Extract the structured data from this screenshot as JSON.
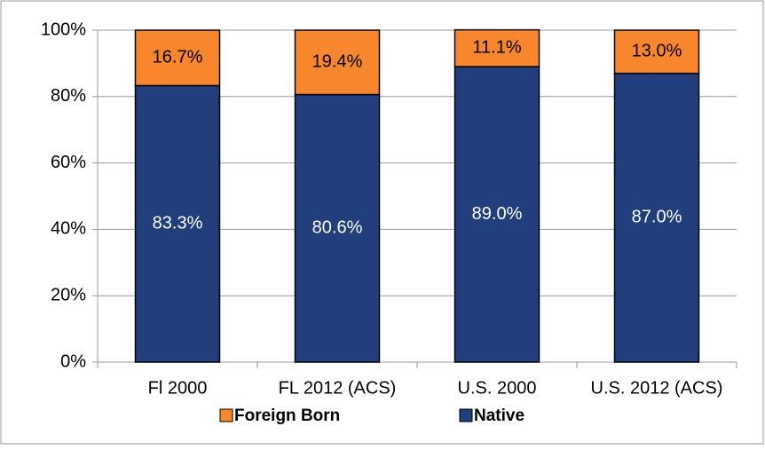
{
  "chart_data": {
    "type": "stacked-bar",
    "categories": [
      "Fl 2000",
      "FL 2012 (ACS)",
      "U.S. 2000",
      "U.S. 2012 (ACS)"
    ],
    "series": [
      {
        "name": "Native",
        "color": "#203f7c",
        "label_color": "#ffffff",
        "values": [
          83.3,
          80.6,
          89.0,
          87.0
        ],
        "value_labels": [
          "83.3%",
          "80.6%",
          "89.0%",
          "87.0%"
        ]
      },
      {
        "name": "Foreign Born",
        "color": "#f7862c",
        "label_color": "#000000",
        "values": [
          16.7,
          19.4,
          11.1,
          13.0
        ],
        "value_labels": [
          "16.7%",
          "19.4%",
          "11.1%",
          "13.0%"
        ]
      }
    ],
    "ylim": [
      0,
      100
    ],
    "yticks": [
      {
        "value": 0,
        "label": "0%"
      },
      {
        "value": 20,
        "label": "20%"
      },
      {
        "value": 40,
        "label": "40%"
      },
      {
        "value": 60,
        "label": "60%"
      },
      {
        "value": 80,
        "label": "80%"
      },
      {
        "value": 100,
        "label": "100%"
      }
    ],
    "grid": true,
    "legend": "bottom"
  }
}
